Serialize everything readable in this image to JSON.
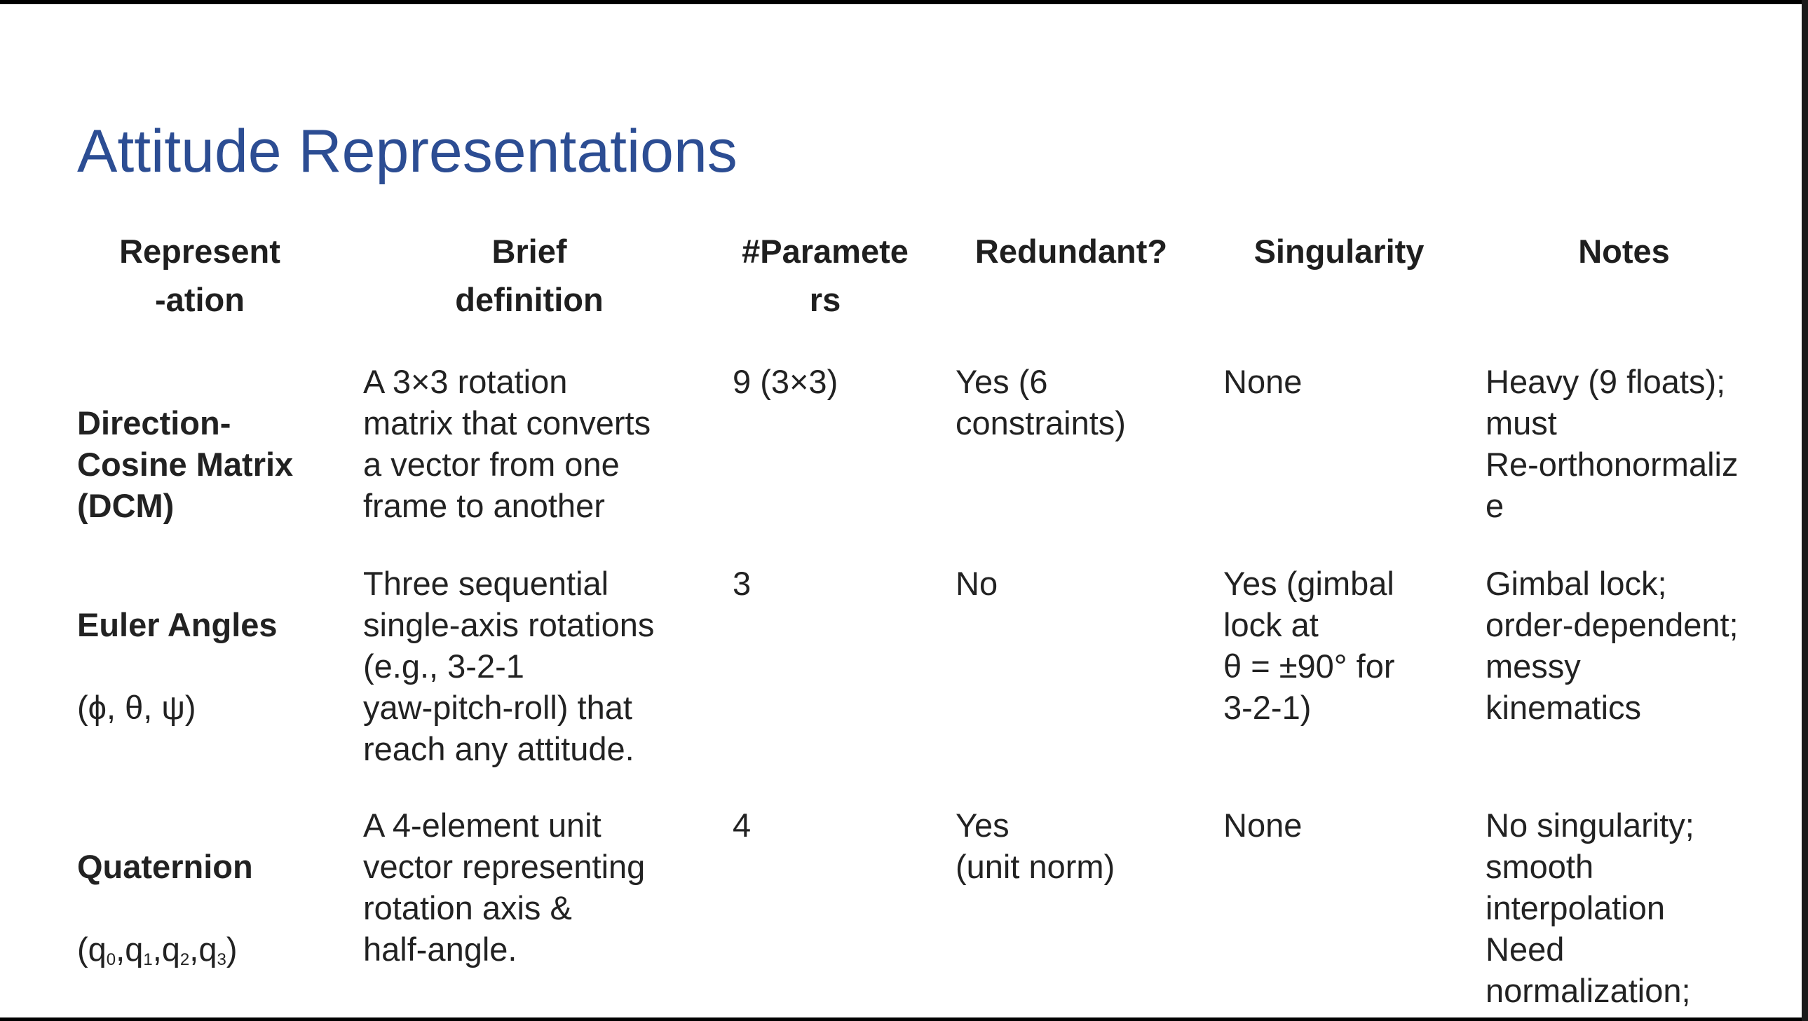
{
  "slide": {
    "title": "Attitude Representations",
    "headers": {
      "representation": "Represent\n-ation",
      "brief_definition": "Brief\ndefinition",
      "num_parameters": "#Paramete\nrs",
      "redundant": "Redundant?",
      "singularity": "Singularity",
      "notes": "Notes"
    },
    "rows": [
      {
        "name": "Direction-\nCosine Matrix\n(DCM)",
        "symbol": "",
        "definition": "A 3×3 rotation\nmatrix that converts\na vector from one\nframe to another",
        "parameters": "9 (3×3)",
        "redundant": "Yes (6\nconstraints)",
        "singularity": "None",
        "notes": "Heavy (9 floats);\nmust\nRe-orthonormaliz\ne"
      },
      {
        "name": "Euler Angles",
        "symbol": "(ϕ, θ, ψ)",
        "definition": "Three sequential\nsingle-axis rotations\n(e.g., 3-2-1\nyaw-pitch-roll) that\nreach any attitude.",
        "parameters": "3",
        "redundant": "No",
        "singularity": "Yes (gimbal\nlock at\nθ = ±90° for\n3-2-1)",
        "notes": "Gimbal lock;\norder-dependent;\nmessy\nkinematics"
      },
      {
        "name": "Quaternion",
        "symbol_sub": [
          "0",
          "1",
          "2",
          "3"
        ],
        "definition": "A 4-element unit\nvector representing\nrotation axis &\nhalf-angle.",
        "parameters": "4",
        "redundant": "Yes\n(unit norm)",
        "singularity": "None",
        "notes": "No singularity;\nsmooth\ninterpolation\nNeed\nnormalization;"
      }
    ]
  }
}
